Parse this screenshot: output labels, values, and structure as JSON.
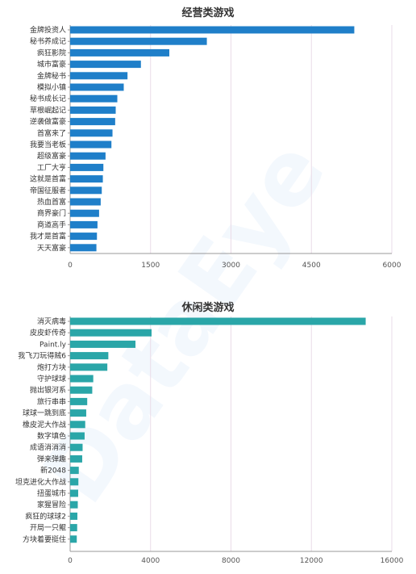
{
  "watermark": "DataEye",
  "chart_data": [
    {
      "type": "bar",
      "orientation": "horizontal",
      "title": "经营类游戏",
      "color": "#1f7fc9",
      "xlim": [
        0,
        6000
      ],
      "ticks": [
        0,
        1500,
        3000,
        4500,
        6000
      ],
      "grid": true,
      "categories": [
        "金牌投资人",
        "秘书养成记",
        "疯狂影院",
        "城市富豪",
        "金牌秘书",
        "模拟小镇",
        "秘书成长记",
        "草根崛起记",
        "逆袭做富豪",
        "首富来了",
        "我要当老板",
        "超级富豪",
        "工厂大亨",
        "这就是首富",
        "帝国征服者",
        "热血首富",
        "商界豪门",
        "商道高手",
        "我才是首富",
        "天天富豪"
      ],
      "values": [
        5300,
        2550,
        1850,
        1320,
        1070,
        1000,
        880,
        850,
        840,
        790,
        770,
        660,
        620,
        610,
        590,
        570,
        540,
        510,
        500,
        490
      ]
    },
    {
      "type": "bar",
      "orientation": "horizontal",
      "title": "休闲类游戏",
      "color": "#2aa6a8",
      "xlim": [
        0,
        16000
      ],
      "ticks": [
        0,
        4000,
        8000,
        12000,
        16000
      ],
      "grid": true,
      "categories": [
        "消灭病毒",
        "皮皮虾传奇",
        "Paint.ly",
        "我飞刀玩得贼6",
        "炮打方块",
        "守护球球",
        "抛出银河系",
        "旅行串串",
        "球球一跳到底",
        "橡皮泥大作战",
        "数字填色",
        "成语消消消",
        "弹来弹趣",
        "新2048",
        "坦克进化大作战",
        "扭蛋城市",
        "家猩冒险",
        "疯狂的球球2",
        "开局一只鲲",
        "方块着要挺住"
      ],
      "values": [
        14700,
        4050,
        3250,
        1900,
        1850,
        1150,
        1100,
        850,
        800,
        750,
        720,
        620,
        600,
        430,
        410,
        400,
        380,
        360,
        350,
        330
      ]
    }
  ]
}
